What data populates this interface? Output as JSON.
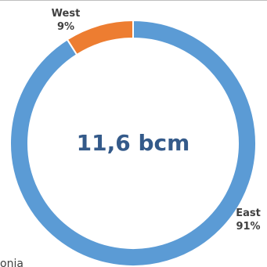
{
  "chart_data": {
    "type": "pie",
    "style": "donut",
    "center_label": "11,6 bcm",
    "slices": [
      {
        "name": "East",
        "value": 91,
        "value_label": "91%",
        "color": "#5b9bd5"
      },
      {
        "name": "West",
        "value": 9,
        "value_label": "9%",
        "color": "#ed7d31"
      }
    ]
  },
  "footnote": "onia"
}
